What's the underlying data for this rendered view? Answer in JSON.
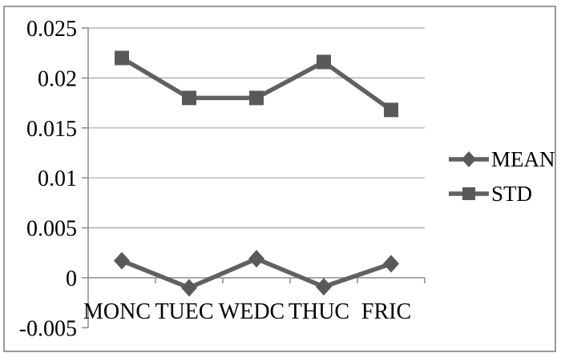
{
  "chart_data": {
    "type": "line",
    "title": "",
    "xlabel": "",
    "ylabel": "",
    "categories": [
      "MONC",
      "TUEC",
      "WEDC",
      "THUC",
      "FRIC"
    ],
    "series": [
      {
        "name": "MEAN",
        "marker": "diamond",
        "values": [
          0.0017,
          -0.001,
          0.0019,
          -0.0009,
          0.0014
        ]
      },
      {
        "name": "STD",
        "marker": "square",
        "values": [
          0.022,
          0.018,
          0.018,
          0.0216,
          0.0168
        ]
      }
    ],
    "y_axis": {
      "min": -0.005,
      "max": 0.025,
      "step": 0.005,
      "tick_labels": [
        "-0.005",
        "0",
        "0.005",
        "0.01",
        "0.015",
        "0.02",
        "0.025"
      ]
    },
    "x_axis_position": "zero",
    "grid": true,
    "legend_position": "right"
  },
  "colors": {
    "background": "#ffffff",
    "border": "#999999",
    "gridline": "#a6a6a6",
    "axis": "#8c8c8c",
    "series_line": "#616161",
    "marker": "#595959",
    "text": "#000000"
  }
}
